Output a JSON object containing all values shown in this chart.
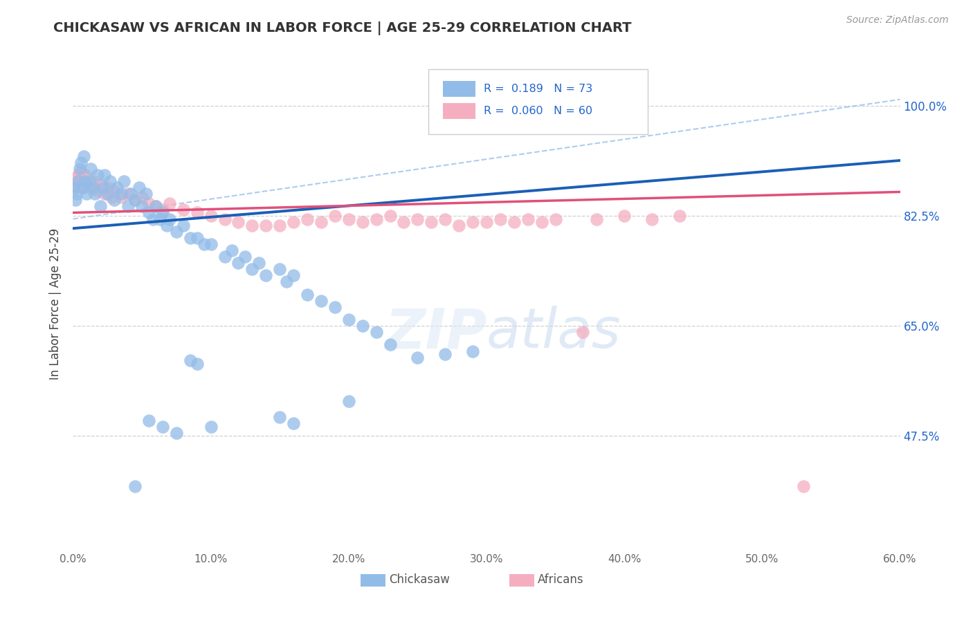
{
  "title": "CHICKASAW VS AFRICAN IN LABOR FORCE | AGE 25-29 CORRELATION CHART",
  "source_text": "Source: ZipAtlas.com",
  "ylabel": "In Labor Force | Age 25-29",
  "xmin": 0.0,
  "xmax": 0.6,
  "ymin": 0.3,
  "ymax": 1.07,
  "ytick_vals": [
    0.475,
    0.65,
    0.825,
    1.0
  ],
  "ytick_labels": [
    "47.5%",
    "65.0%",
    "82.5%",
    "100.0%"
  ],
  "xtick_vals": [
    0.0,
    0.1,
    0.2,
    0.3,
    0.4,
    0.5,
    0.6
  ],
  "xtick_labels": [
    "0.0%",
    "10.0%",
    "20.0%",
    "30.0%",
    "40.0%",
    "50.0%",
    "60.0%"
  ],
  "chickasaw_color": "#92bce8",
  "african_color": "#f5aec0",
  "trend_color_chickasaw": "#1a5fb5",
  "trend_color_african": "#e0507a",
  "dashed_color": "#92bce8",
  "background_color": "#ffffff",
  "grid_color": "#d0d0d0",
  "legend_r1": "R =  0.189",
  "legend_n1": "N = 73",
  "legend_r2": "R =  0.060",
  "legend_n2": "N = 60",
  "chickasaw_x": [
    0.001,
    0.002,
    0.003,
    0.004,
    0.005,
    0.006,
    0.007,
    0.008,
    0.009,
    0.01,
    0.012,
    0.013,
    0.015,
    0.016,
    0.018,
    0.02,
    0.022,
    0.023,
    0.025,
    0.027,
    0.03,
    0.032,
    0.035,
    0.037,
    0.04,
    0.042,
    0.045,
    0.048,
    0.05,
    0.053,
    0.055,
    0.058,
    0.06,
    0.063,
    0.065,
    0.068,
    0.07,
    0.075,
    0.08,
    0.085,
    0.09,
    0.095,
    0.1,
    0.11,
    0.115,
    0.12,
    0.125,
    0.13,
    0.135,
    0.14,
    0.15,
    0.155,
    0.16,
    0.17,
    0.18,
    0.19,
    0.2,
    0.21,
    0.22,
    0.23,
    0.15,
    0.16,
    0.2,
    0.25,
    0.27,
    0.29,
    0.1,
    0.09,
    0.085,
    0.075,
    0.065,
    0.055,
    0.045
  ],
  "chickasaw_y": [
    0.87,
    0.85,
    0.86,
    0.88,
    0.9,
    0.91,
    0.87,
    0.92,
    0.88,
    0.86,
    0.88,
    0.9,
    0.87,
    0.86,
    0.89,
    0.84,
    0.87,
    0.89,
    0.86,
    0.88,
    0.85,
    0.87,
    0.86,
    0.88,
    0.84,
    0.86,
    0.85,
    0.87,
    0.84,
    0.86,
    0.83,
    0.82,
    0.84,
    0.82,
    0.83,
    0.81,
    0.82,
    0.8,
    0.81,
    0.79,
    0.79,
    0.78,
    0.78,
    0.76,
    0.77,
    0.75,
    0.76,
    0.74,
    0.75,
    0.73,
    0.74,
    0.72,
    0.73,
    0.7,
    0.69,
    0.68,
    0.66,
    0.65,
    0.64,
    0.62,
    0.505,
    0.495,
    0.53,
    0.6,
    0.605,
    0.61,
    0.49,
    0.59,
    0.595,
    0.48,
    0.49,
    0.5,
    0.395
  ],
  "african_x": [
    0.001,
    0.002,
    0.003,
    0.004,
    0.005,
    0.006,
    0.007,
    0.008,
    0.009,
    0.01,
    0.012,
    0.015,
    0.018,
    0.02,
    0.023,
    0.025,
    0.028,
    0.03,
    0.035,
    0.04,
    0.045,
    0.05,
    0.055,
    0.06,
    0.065,
    0.07,
    0.08,
    0.09,
    0.1,
    0.11,
    0.12,
    0.13,
    0.14,
    0.15,
    0.16,
    0.17,
    0.18,
    0.19,
    0.2,
    0.21,
    0.22,
    0.23,
    0.24,
    0.25,
    0.26,
    0.27,
    0.28,
    0.29,
    0.3,
    0.31,
    0.32,
    0.33,
    0.34,
    0.35,
    0.38,
    0.4,
    0.42,
    0.44,
    0.37,
    0.53
  ],
  "african_y": [
    0.875,
    0.885,
    0.87,
    0.89,
    0.88,
    0.895,
    0.87,
    0.88,
    0.89,
    0.875,
    0.87,
    0.88,
    0.865,
    0.875,
    0.86,
    0.87,
    0.855,
    0.865,
    0.855,
    0.86,
    0.85,
    0.855,
    0.845,
    0.84,
    0.835,
    0.845,
    0.835,
    0.83,
    0.825,
    0.82,
    0.815,
    0.81,
    0.81,
    0.81,
    0.815,
    0.82,
    0.815,
    0.825,
    0.82,
    0.815,
    0.82,
    0.825,
    0.815,
    0.82,
    0.815,
    0.82,
    0.81,
    0.815,
    0.815,
    0.82,
    0.815,
    0.82,
    0.815,
    0.82,
    0.82,
    0.825,
    0.82,
    0.825,
    0.64,
    0.395
  ]
}
